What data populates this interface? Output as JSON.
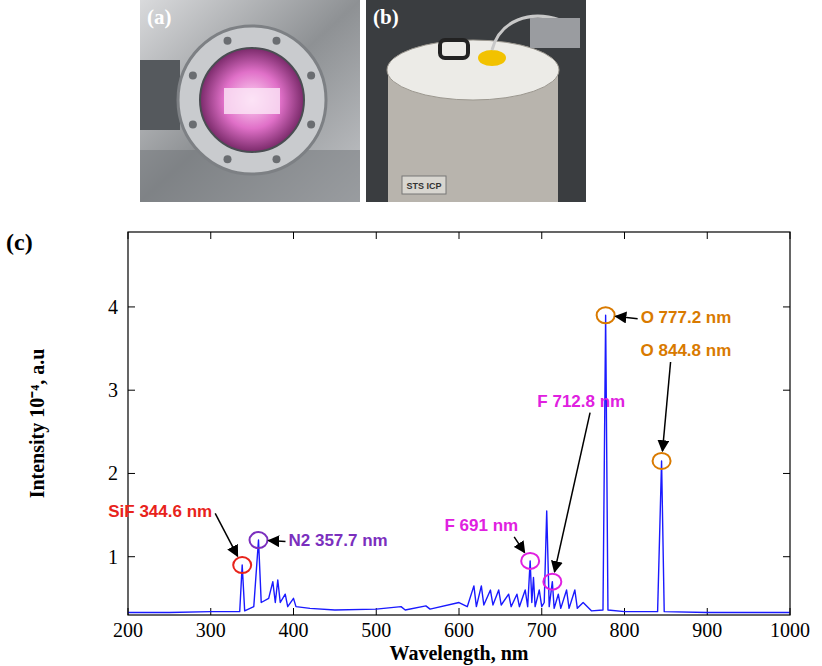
{
  "photos": [
    {
      "label": "(a)"
    },
    {
      "label": "(b)",
      "text": "STS ICP"
    }
  ],
  "chart_data": {
    "type": "line",
    "label": "(c)",
    "x_label": "Wavelength, nm",
    "y_label": "Intensity 10⁻⁴, a.u",
    "color": "#1a1aff",
    "xlim": [
      200,
      1000
    ],
    "xticks": [
      200,
      300,
      400,
      500,
      600,
      700,
      800,
      900,
      1000
    ],
    "ylim": [
      0.3,
      4.9
    ],
    "yticks": [
      1,
      2,
      3,
      4
    ],
    "x": [
      200,
      250,
      300,
      335,
      338,
      341,
      352,
      357.7,
      361,
      370,
      375,
      378,
      381,
      384,
      390,
      393,
      400,
      403,
      420,
      450,
      500,
      530,
      535,
      560,
      565,
      600,
      610,
      618,
      621,
      627,
      630,
      638,
      641,
      648,
      651,
      660,
      663,
      670,
      673,
      680,
      683,
      686,
      688,
      690,
      692,
      697,
      700,
      703,
      706,
      709,
      712.8,
      715,
      720,
      723,
      730,
      733,
      740,
      743,
      750,
      760,
      774,
      777.2,
      780,
      800,
      840,
      844.8,
      848,
      900,
      950,
      1000
    ],
    "values": [
      0.33,
      0.33,
      0.34,
      0.34,
      0.9,
      0.35,
      0.4,
      1.2,
      0.45,
      0.5,
      0.7,
      0.45,
      0.72,
      0.45,
      0.55,
      0.4,
      0.5,
      0.4,
      0.38,
      0.36,
      0.37,
      0.4,
      0.36,
      0.41,
      0.37,
      0.45,
      0.4,
      0.65,
      0.4,
      0.65,
      0.42,
      0.6,
      0.42,
      0.6,
      0.42,
      0.55,
      0.4,
      0.55,
      0.4,
      0.6,
      0.4,
      0.95,
      0.45,
      0.75,
      0.4,
      0.6,
      0.4,
      0.45,
      1.55,
      0.4,
      0.7,
      0.38,
      0.55,
      0.38,
      0.6,
      0.38,
      0.6,
      0.38,
      0.45,
      0.35,
      0.36,
      3.9,
      0.36,
      0.34,
      0.34,
      2.15,
      0.34,
      0.33,
      0.33,
      0.33
    ],
    "annotations": [
      {
        "text": "SiF 344.6 nm",
        "x": 338,
        "y": 0.9,
        "color": "#e8231b"
      },
      {
        "text": "N2 357.7 nm",
        "x": 357.7,
        "y": 1.2,
        "color": "#7b2fbe"
      },
      {
        "text": "F 691 nm",
        "x": 686,
        "y": 0.95,
        "color": "#e020e0"
      },
      {
        "text": "F 712.8 nm",
        "x": 712.8,
        "y": 0.7,
        "color": "#e020e0"
      },
      {
        "text": "O 777.2 nm",
        "x": 777.2,
        "y": 3.9,
        "color": "#d97a00"
      },
      {
        "text": "O 844.8 nm",
        "x": 844.8,
        "y": 2.15,
        "color": "#d97a00"
      }
    ]
  }
}
